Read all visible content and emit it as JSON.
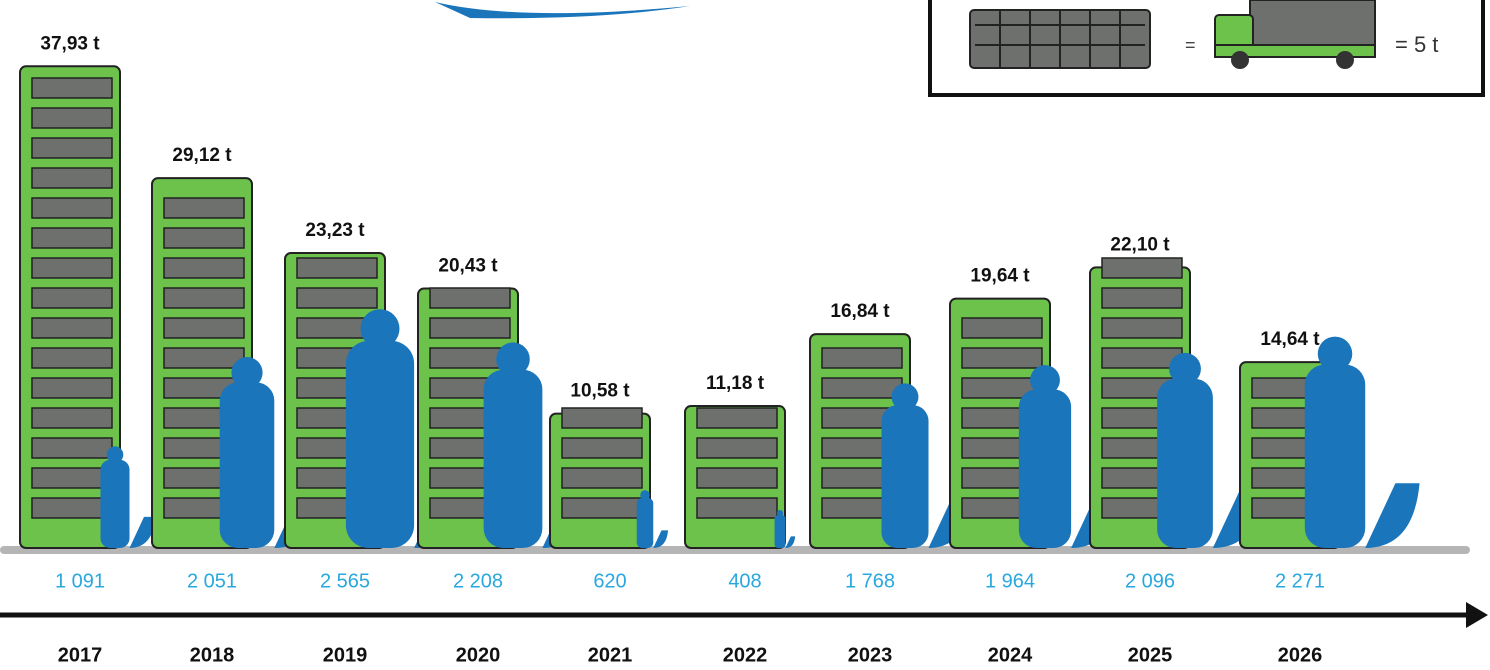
{
  "chart_data": {
    "type": "pictogram",
    "categories": [
      "2017",
      "2018",
      "2019",
      "2020",
      "2021",
      "2022",
      "2023",
      "2024",
      "2025",
      "2026"
    ],
    "series": [
      {
        "color": "#6cc24a",
        "values": [
          37.93,
          29.12,
          23.23,
          20.43,
          10.58,
          11.18,
          16.84,
          19.64,
          22.1,
          14.64
        ],
        "value_labels": [
          "37,93 t",
          "29,12 t",
          "23,23 t",
          "20,43 t",
          "10,58 t",
          "11,18 t",
          "16,84 t",
          "19,64 t",
          "22,10 t",
          "14,64 t"
        ]
      },
      {
        "color": "#1b75bb",
        "values": [
          1091,
          2051,
          2565,
          2208,
          620,
          408,
          1768,
          1964,
          2096,
          2271
        ],
        "value_labels": [
          "1 091",
          "2 051",
          "2 565",
          "2 208",
          "620",
          "408",
          "1 768",
          "1 964",
          "2 096",
          "2 271"
        ]
      }
    ],
    "legend": {
      "equals": "=",
      "unit_label": "= 5 t"
    }
  }
}
